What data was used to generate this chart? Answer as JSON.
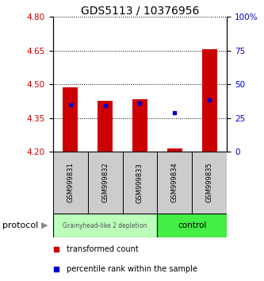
{
  "title": "GDS5113 / 10376956",
  "samples": [
    "GSM999831",
    "GSM999832",
    "GSM999833",
    "GSM999834",
    "GSM999835"
  ],
  "bar_bottoms": [
    4.2,
    4.2,
    4.2,
    4.2,
    4.2
  ],
  "bar_tops": [
    4.485,
    4.425,
    4.435,
    4.215,
    4.655
  ],
  "percentile_values": [
    4.41,
    4.405,
    4.415,
    4.375,
    4.43
  ],
  "ylim": [
    4.2,
    4.8
  ],
  "y2lim": [
    0,
    100
  ],
  "yticks": [
    4.2,
    4.35,
    4.5,
    4.65,
    4.8
  ],
  "y2ticks": [
    0,
    25,
    50,
    75,
    100
  ],
  "bar_color": "#cc0000",
  "dot_color": "#0000cc",
  "group1_samples": [
    0,
    1,
    2
  ],
  "group2_samples": [
    3,
    4
  ],
  "group1_label": "Grainyhead-like 2 depletion",
  "group2_label": "control",
  "group1_color": "#bbffbb",
  "group2_color": "#44ee44",
  "sample_box_color": "#cccccc",
  "gridline_style": "dotted",
  "gridline_color": "#000000",
  "legend_red_label": "transformed count",
  "legend_blue_label": "percentile rank within the sample",
  "protocol_label": "protocol",
  "bar_width": 0.45
}
